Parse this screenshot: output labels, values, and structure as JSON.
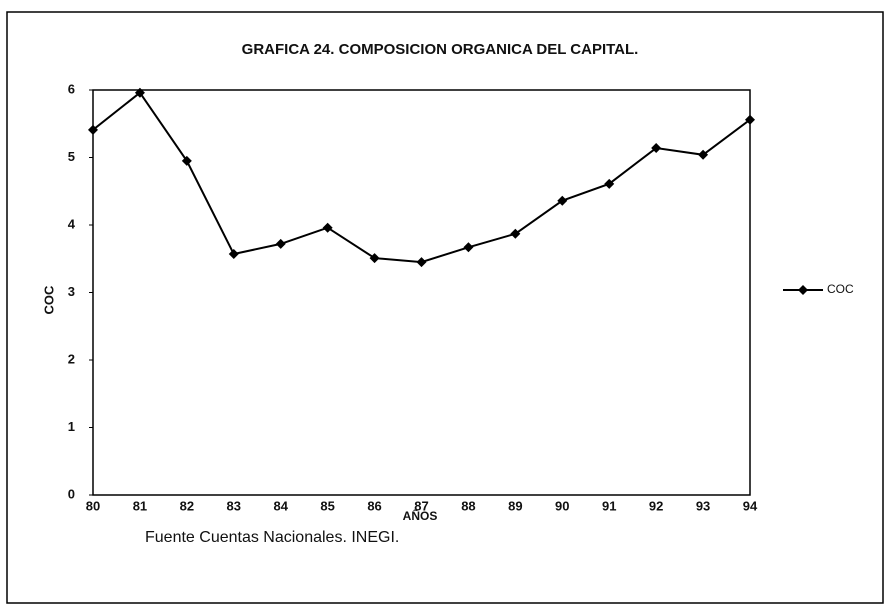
{
  "chart_data": {
    "type": "line",
    "title": "GRAFICA 24. COMPOSICION ORGANICA DEL CAPITAL.",
    "y_label": "COC",
    "x_label": "AÑOS",
    "source": "Fuente  Cuentas Nacionales. INEGI.",
    "categories": [
      "80",
      "81",
      "82",
      "83",
      "84",
      "85",
      "86",
      "87",
      "88",
      "89",
      "90",
      "91",
      "92",
      "93",
      "94"
    ],
    "series": [
      {
        "name": "COC",
        "color": "#000000",
        "values": [
          5.41,
          5.96,
          4.95,
          3.57,
          3.72,
          3.96,
          3.51,
          3.45,
          3.67,
          3.87,
          4.36,
          4.61,
          5.14,
          5.04,
          5.56
        ]
      }
    ],
    "ylim": [
      0,
      6
    ],
    "yticks": [
      0,
      1,
      2,
      3,
      4,
      5,
      6
    ],
    "grid": false,
    "legend": "right"
  }
}
